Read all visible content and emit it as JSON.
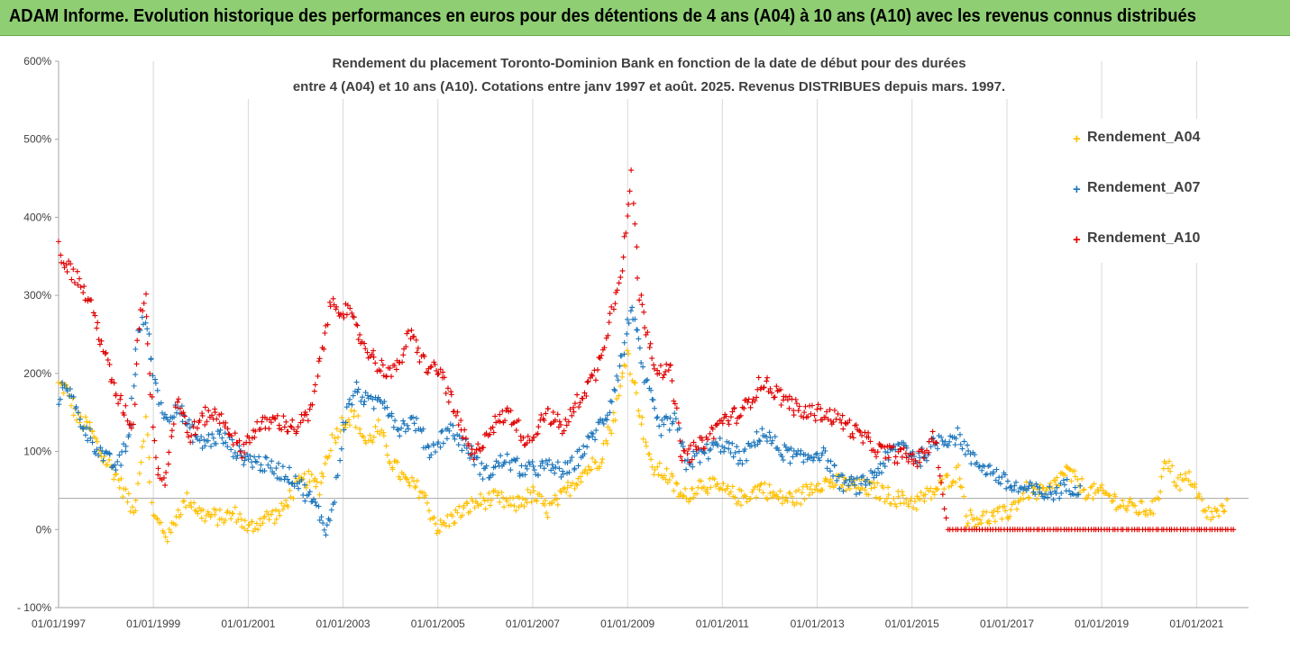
{
  "header": {
    "title": "ADAM Informe. Evolution historique des performances en euros pour des détentions de 4 ans (A04) à 10 ans (A10) avec les revenus connus distribués"
  },
  "chart_data": {
    "type": "scatter",
    "title_line1": "Rendement du placement Toronto-Dominion Bank en fonction de la date de début pour des durées",
    "title_line2": "entre 4 (A04) et 10 ans (A10). Cotations entre janv 1997 et août. 2025. Revenus DISTRIBUES depuis mars. 1997.",
    "xlim": [
      "1997-01-01",
      "2022-01-01"
    ],
    "ylim": [
      -100,
      600
    ],
    "ytick_labels": [
      "- 100%",
      "0%",
      "100%",
      "200%",
      "300%",
      "400%",
      "500%",
      "600%"
    ],
    "ytick_values": [
      -100,
      0,
      100,
      200,
      300,
      400,
      500,
      600
    ],
    "xtick_labels": [
      "01/01/1997",
      "01/01/1999",
      "01/01/2001",
      "01/01/2003",
      "01/01/2005",
      "01/01/2007",
      "01/01/2009",
      "01/01/2011",
      "01/01/2013",
      "01/01/2015",
      "01/01/2017",
      "01/01/2019",
      "01/01/2021"
    ],
    "reference_line": 40,
    "legend_position": "right",
    "grid": "vertical",
    "series": [
      {
        "name": "Rendement_A04",
        "color": "#ffc000",
        "points": [
          [
            "1997-01-01",
            185
          ],
          [
            "1997-03-01",
            180
          ],
          [
            "1997-06-01",
            140
          ],
          [
            "1997-09-01",
            130
          ],
          [
            "1997-12-01",
            95
          ],
          [
            "1998-03-01",
            75
          ],
          [
            "1998-06-01",
            45
          ],
          [
            "1998-08-01",
            20
          ],
          [
            "1998-09-01",
            60
          ],
          [
            "1998-11-01",
            140
          ],
          [
            "1999-01-01",
            15
          ],
          [
            "1999-03-01",
            5
          ],
          [
            "1999-05-01",
            -10
          ],
          [
            "1999-07-01",
            20
          ],
          [
            "1999-10-01",
            40
          ],
          [
            "2000-01-01",
            20
          ],
          [
            "2000-06-01",
            15
          ],
          [
            "2000-10-01",
            20
          ],
          [
            "2001-01-01",
            0
          ],
          [
            "2001-05-01",
            15
          ],
          [
            "2001-09-01",
            20
          ],
          [
            "2002-01-01",
            55
          ],
          [
            "2002-04-01",
            65
          ],
          [
            "2002-07-01",
            55
          ],
          [
            "2002-10-01",
            110
          ],
          [
            "2003-01-01",
            140
          ],
          [
            "2003-04-01",
            145
          ],
          [
            "2003-07-01",
            110
          ],
          [
            "2003-10-01",
            130
          ],
          [
            "2004-01-01",
            90
          ],
          [
            "2004-05-01",
            60
          ],
          [
            "2004-09-01",
            50
          ],
          [
            "2005-01-01",
            0
          ],
          [
            "2005-06-01",
            20
          ],
          [
            "2005-11-01",
            35
          ],
          [
            "2006-04-01",
            40
          ],
          [
            "2006-08-01",
            30
          ],
          [
            "2007-01-01",
            45
          ],
          [
            "2007-05-01",
            25
          ],
          [
            "2007-09-01",
            45
          ],
          [
            "2008-01-01",
            70
          ],
          [
            "2008-06-01",
            90
          ],
          [
            "2008-10-01",
            150
          ],
          [
            "2009-01-01",
            230
          ],
          [
            "2009-03-01",
            180
          ],
          [
            "2009-07-01",
            80
          ],
          [
            "2009-11-01",
            70
          ],
          [
            "2010-03-01",
            40
          ],
          [
            "2010-08-01",
            60
          ],
          [
            "2011-01-01",
            50
          ],
          [
            "2011-06-01",
            40
          ],
          [
            "2011-11-01",
            55
          ],
          [
            "2012-03-01",
            40
          ],
          [
            "2012-08-01",
            40
          ],
          [
            "2013-01-01",
            60
          ],
          [
            "2013-06-01",
            60
          ],
          [
            "2013-11-01",
            55
          ],
          [
            "2014-04-01",
            50
          ],
          [
            "2014-09-01",
            40
          ],
          [
            "2015-02-01",
            35
          ],
          [
            "2015-07-01",
            50
          ],
          [
            "2016-01-01",
            75
          ],
          [
            "2016-03-01",
            15
          ],
          [
            "2016-08-01",
            15
          ],
          [
            "2017-01-01",
            20
          ],
          [
            "2017-06-01",
            50
          ],
          [
            "2017-11-01",
            45
          ],
          [
            "2018-04-01",
            75
          ],
          [
            "2018-09-01",
            50
          ],
          [
            "2019-02-01",
            45
          ],
          [
            "2019-07-01",
            30
          ],
          [
            "2019-12-01",
            25
          ],
          [
            "2020-03-01",
            30
          ],
          [
            "2020-05-01",
            95
          ],
          [
            "2020-08-01",
            60
          ],
          [
            "2020-12-01",
            65
          ],
          [
            "2021-03-01",
            20
          ],
          [
            "2021-06-01",
            20
          ],
          [
            "2021-09-01",
            30
          ]
        ]
      },
      {
        "name": "Rendement_A07",
        "color": "#1b75bb",
        "points": [
          [
            "1997-01-01",
            170
          ],
          [
            "1997-03-01",
            190
          ],
          [
            "1997-06-01",
            145
          ],
          [
            "1997-10-01",
            110
          ],
          [
            "1998-01-01",
            90
          ],
          [
            "1998-04-01",
            80
          ],
          [
            "1998-07-01",
            120
          ],
          [
            "1998-09-01",
            250
          ],
          [
            "1998-11-01",
            270
          ],
          [
            "1999-01-01",
            200
          ],
          [
            "1999-04-01",
            140
          ],
          [
            "1999-07-01",
            160
          ],
          [
            "1999-10-01",
            130
          ],
          [
            "2000-01-01",
            110
          ],
          [
            "2000-06-01",
            120
          ],
          [
            "2000-11-01",
            95
          ],
          [
            "2001-04-01",
            85
          ],
          [
            "2001-09-01",
            75
          ],
          [
            "2002-01-01",
            65
          ],
          [
            "2002-06-01",
            30
          ],
          [
            "2002-09-01",
            0
          ],
          [
            "2002-11-01",
            40
          ],
          [
            "2003-01-01",
            130
          ],
          [
            "2003-04-01",
            180
          ],
          [
            "2003-08-01",
            160
          ],
          [
            "2003-11-01",
            170
          ],
          [
            "2004-03-01",
            130
          ],
          [
            "2004-07-01",
            140
          ],
          [
            "2004-11-01",
            100
          ],
          [
            "2005-04-01",
            130
          ],
          [
            "2005-09-01",
            100
          ],
          [
            "2006-01-01",
            70
          ],
          [
            "2006-06-01",
            90
          ],
          [
            "2006-11-01",
            75
          ],
          [
            "2007-04-01",
            80
          ],
          [
            "2007-10-01",
            75
          ],
          [
            "2008-03-01",
            110
          ],
          [
            "2008-08-01",
            150
          ],
          [
            "2008-12-01",
            230
          ],
          [
            "2009-02-01",
            290
          ],
          [
            "2009-05-01",
            200
          ],
          [
            "2009-09-01",
            130
          ],
          [
            "2010-01-01",
            140
          ],
          [
            "2010-04-01",
            85
          ],
          [
            "2010-09-01",
            100
          ],
          [
            "2011-01-01",
            110
          ],
          [
            "2011-06-01",
            90
          ],
          [
            "2011-11-01",
            125
          ],
          [
            "2012-04-01",
            100
          ],
          [
            "2012-09-01",
            90
          ],
          [
            "2013-02-01",
            100
          ],
          [
            "2013-07-01",
            60
          ],
          [
            "2013-12-01",
            55
          ],
          [
            "2014-05-01",
            80
          ],
          [
            "2014-10-01",
            110
          ],
          [
            "2015-03-01",
            90
          ],
          [
            "2015-08-01",
            115
          ],
          [
            "2016-01-01",
            120
          ],
          [
            "2016-04-01",
            90
          ],
          [
            "2016-09-01",
            75
          ],
          [
            "2017-02-01",
            55
          ],
          [
            "2017-07-01",
            50
          ],
          [
            "2017-12-01",
            45
          ],
          [
            "2018-04-01",
            55
          ],
          [
            "2018-08-01",
            55
          ]
        ]
      },
      {
        "name": "Rendement_A10",
        "color": "#e00000",
        "points": [
          [
            "1997-01-01",
            360
          ],
          [
            "1997-03-01",
            340
          ],
          [
            "1997-06-01",
            320
          ],
          [
            "1997-09-01",
            290
          ],
          [
            "1997-12-01",
            240
          ],
          [
            "1998-03-01",
            180
          ],
          [
            "1998-06-01",
            150
          ],
          [
            "1998-08-01",
            130
          ],
          [
            "1998-09-01",
            250
          ],
          [
            "1998-11-01",
            310
          ],
          [
            "1998-12-01",
            200
          ],
          [
            "1999-02-01",
            80
          ],
          [
            "1999-04-01",
            60
          ],
          [
            "1999-07-01",
            170
          ],
          [
            "1999-10-01",
            120
          ],
          [
            "2000-03-01",
            150
          ],
          [
            "2000-07-01",
            140
          ],
          [
            "2000-11-01",
            100
          ],
          [
            "2001-03-01",
            130
          ],
          [
            "2001-08-01",
            140
          ],
          [
            "2002-01-01",
            130
          ],
          [
            "2002-05-01",
            150
          ],
          [
            "2002-08-01",
            240
          ],
          [
            "2002-10-01",
            290
          ],
          [
            "2003-02-01",
            280
          ],
          [
            "2003-06-01",
            240
          ],
          [
            "2003-10-01",
            210
          ],
          [
            "2004-02-01",
            200
          ],
          [
            "2004-06-01",
            250
          ],
          [
            "2004-10-01",
            210
          ],
          [
            "2005-02-01",
            200
          ],
          [
            "2005-06-01",
            140
          ],
          [
            "2005-10-01",
            90
          ],
          [
            "2006-02-01",
            130
          ],
          [
            "2006-07-01",
            150
          ],
          [
            "2006-12-01",
            110
          ],
          [
            "2007-04-01",
            150
          ],
          [
            "2007-09-01",
            130
          ],
          [
            "2008-01-01",
            170
          ],
          [
            "2008-05-01",
            200
          ],
          [
            "2008-09-01",
            280
          ],
          [
            "2008-12-01",
            350
          ],
          [
            "2009-02-01",
            450
          ],
          [
            "2009-04-01",
            300
          ],
          [
            "2009-08-01",
            210
          ],
          [
            "2009-12-01",
            200
          ],
          [
            "2010-03-01",
            90
          ],
          [
            "2010-08-01",
            110
          ],
          [
            "2011-01-01",
            140
          ],
          [
            "2011-06-01",
            150
          ],
          [
            "2011-11-01",
            190
          ],
          [
            "2012-04-01",
            170
          ],
          [
            "2012-09-01",
            150
          ],
          [
            "2013-02-01",
            150
          ],
          [
            "2013-07-01",
            140
          ],
          [
            "2013-12-01",
            120
          ],
          [
            "2014-05-01",
            100
          ],
          [
            "2014-10-01",
            95
          ],
          [
            "2015-03-01",
            90
          ],
          [
            "2015-07-01",
            120
          ],
          [
            "2015-10-01",
            0
          ],
          [
            "2017-01-01",
            0
          ],
          [
            "2019-01-01",
            0
          ],
          [
            "2021-01-01",
            0
          ],
          [
            "2021-11-01",
            0
          ]
        ]
      }
    ]
  }
}
